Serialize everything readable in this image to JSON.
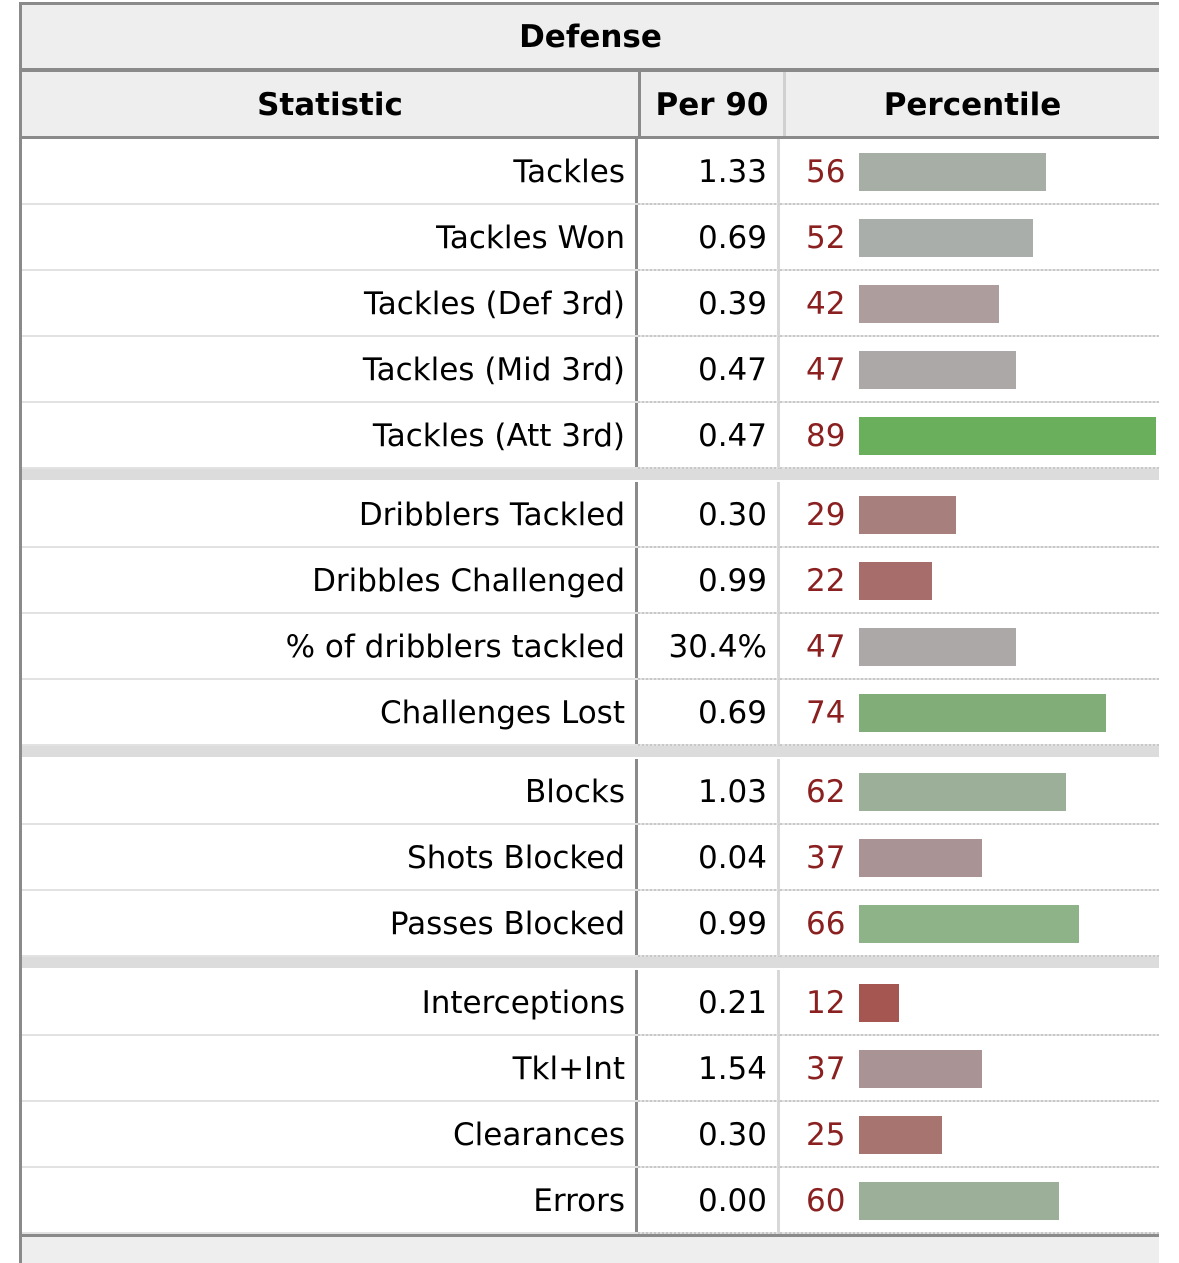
{
  "caption": "Defense",
  "headers": {
    "statistic": "Statistic",
    "per90": "Per 90",
    "percentile": "Percentile"
  },
  "groups": [
    [
      {
        "stat": "Tackles",
        "per90": "1.33",
        "percentile": 56,
        "color": "#a6aea6"
      },
      {
        "stat": "Tackles Won",
        "per90": "0.69",
        "percentile": 52,
        "color": "#aaaeaa"
      },
      {
        "stat": "Tackles (Def 3rd)",
        "per90": "0.39",
        "percentile": 42,
        "color": "#ad9d9d"
      },
      {
        "stat": "Tackles (Mid 3rd)",
        "per90": "0.47",
        "percentile": 47,
        "color": "#ada8a8"
      },
      {
        "stat": "Tackles (Att 3rd)",
        "per90": "0.47",
        "percentile": 89,
        "color": "#6ab05c"
      }
    ],
    [
      {
        "stat": "Dribblers Tackled",
        "per90": "0.30",
        "percentile": 29,
        "color": "#a77f7d"
      },
      {
        "stat": "Dribbles Challenged",
        "per90": "0.99",
        "percentile": 22,
        "color": "#a66d6b"
      },
      {
        "stat": "% of dribblers tackled",
        "per90": "30.4%",
        "percentile": 47,
        "color": "#ada8a8"
      },
      {
        "stat": "Challenges Lost",
        "per90": "0.69",
        "percentile": 74,
        "color": "#80ad78"
      }
    ],
    [
      {
        "stat": "Blocks",
        "per90": "1.03",
        "percentile": 62,
        "color": "#9caf98"
      },
      {
        "stat": "Shots Blocked",
        "per90": "0.04",
        "percentile": 37,
        "color": "#aa9394"
      },
      {
        "stat": "Passes Blocked",
        "per90": "0.99",
        "percentile": 66,
        "color": "#8fb389"
      }
    ],
    [
      {
        "stat": "Interceptions",
        "per90": "0.21",
        "percentile": 12,
        "color": "#a55650"
      },
      {
        "stat": "Tkl+Int",
        "per90": "1.54",
        "percentile": 37,
        "color": "#aa9394"
      },
      {
        "stat": "Clearances",
        "per90": "0.30",
        "percentile": 25,
        "color": "#a77470"
      },
      {
        "stat": "Errors",
        "per90": "0.00",
        "percentile": 60,
        "color": "#9caf98"
      }
    ]
  ]
}
